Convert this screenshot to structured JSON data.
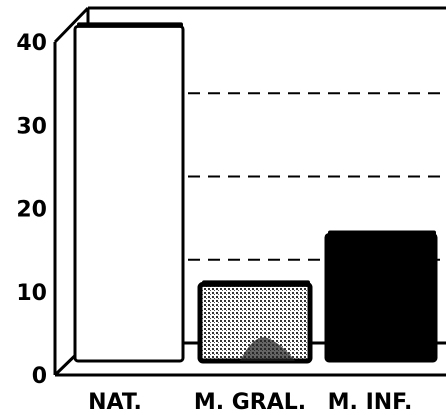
{
  "chart_data": {
    "type": "bar",
    "categories": [
      "NAT.",
      "M. GRAL.",
      "M. INF."
    ],
    "values": [
      39,
      8,
      14
    ],
    "bar_styles": [
      "white",
      "dotted-gray",
      "black"
    ],
    "ylim": [
      0,
      40
    ],
    "yticks": [
      "0",
      "10",
      "20",
      "30",
      "40"
    ],
    "grid": true,
    "grid_style": "dashed",
    "style": "3d-box"
  }
}
